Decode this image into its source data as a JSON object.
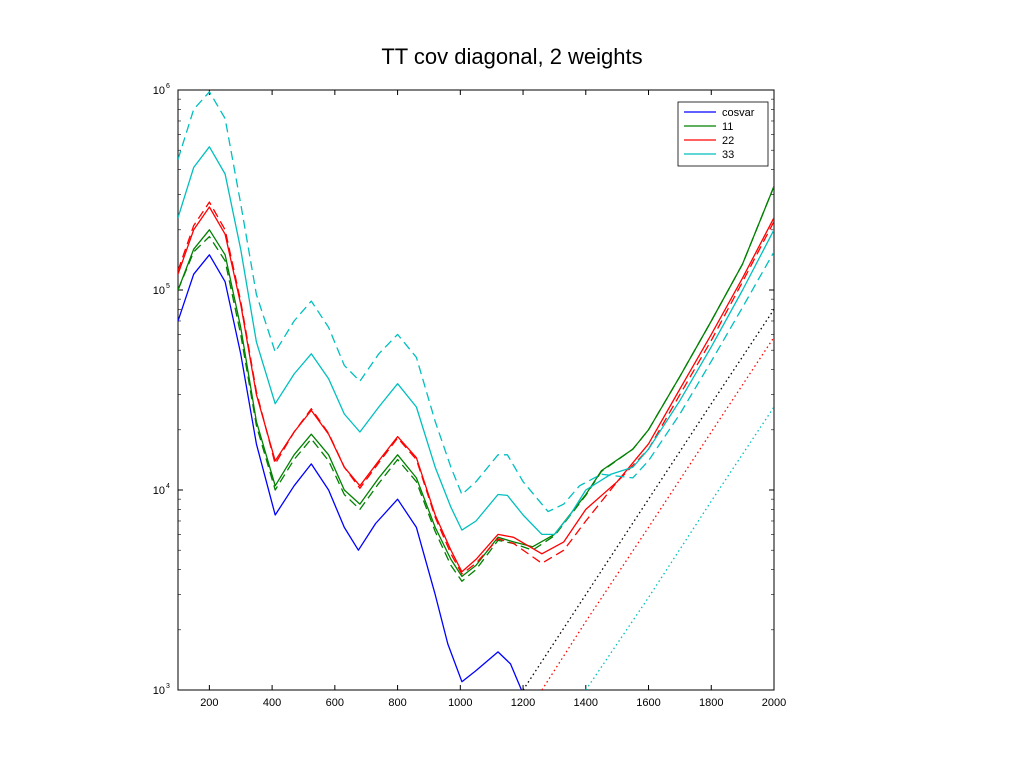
{
  "chart_data": {
    "type": "line",
    "title": "TT cov diagonal, 2 weights",
    "xlabel": "",
    "ylabel": "",
    "xlim": [
      100,
      2000
    ],
    "ylim": [
      1000,
      1000000
    ],
    "yscale": "log",
    "grid": false,
    "legend_position": "top-right",
    "xticks": [
      200,
      400,
      600,
      800,
      1000,
      1200,
      1400,
      1600,
      1800,
      2000
    ],
    "yticks": [
      {
        "value": 1000,
        "base": "10",
        "exp": "3"
      },
      {
        "value": 10000,
        "base": "10",
        "exp": "4"
      },
      {
        "value": 100000,
        "base": "10",
        "exp": "5"
      },
      {
        "value": 1000000,
        "base": "10",
        "exp": "6"
      }
    ],
    "legend": [
      {
        "label": "cosvar",
        "color": "#0000ff"
      },
      {
        "label": "11",
        "color": "#008000"
      },
      {
        "label": "22",
        "color": "#ff0000"
      },
      {
        "label": "33",
        "color": "#00bfbf"
      }
    ],
    "series": [
      {
        "color": "#0000ff",
        "style": "solid",
        "x": [
          100,
          150,
          200,
          250,
          300,
          350,
          410,
          470,
          525,
          580,
          630,
          675,
          730,
          800,
          860,
          920,
          960,
          1005,
          1050,
          1120,
          1160,
          1195
        ],
        "y": [
          70000,
          120000,
          150000,
          110000,
          48000,
          17000,
          7500,
          10500,
          13500,
          10000,
          6500,
          5000,
          6800,
          9000,
          6500,
          3000,
          1700,
          1100,
          1250,
          1550,
          1350,
          1000
        ]
      },
      {
        "color": "#008000",
        "style": "solid",
        "x": [
          100,
          150,
          200,
          250,
          300,
          350,
          410,
          470,
          525,
          580,
          630,
          680,
          740,
          800,
          860,
          920,
          970,
          1005,
          1050,
          1120,
          1170,
          1230,
          1300,
          1400,
          1450,
          1550,
          1600,
          1700,
          1800,
          1900,
          2000
        ],
        "y": [
          100000,
          160000,
          200000,
          150000,
          65000,
          22000,
          10500,
          15000,
          19000,
          15000,
          10000,
          8500,
          11500,
          15000,
          11500,
          6500,
          4500,
          3700,
          4200,
          5800,
          5500,
          5200,
          6000,
          9500,
          12500,
          16000,
          20000,
          37000,
          70000,
          135000,
          330000
        ]
      },
      {
        "color": "#008000",
        "style": "dashed",
        "x": [
          100,
          150,
          200,
          250,
          300,
          350,
          410,
          470,
          525,
          580,
          630,
          680,
          740,
          800,
          860,
          920,
          970,
          1005,
          1050,
          1120,
          1170,
          1230,
          1300,
          1400,
          1450,
          1550,
          1600,
          1700,
          1800,
          1900,
          2000
        ],
        "y": [
          100000,
          155000,
          185000,
          140000,
          60000,
          21000,
          10000,
          14200,
          18000,
          14000,
          9500,
          8000,
          10800,
          14200,
          11000,
          6200,
          4200,
          3500,
          4000,
          5600,
          5400,
          5000,
          5900,
          9400,
          12400,
          16000,
          20000,
          37000,
          70000,
          135000,
          330000
        ]
      },
      {
        "color": "#ff0000",
        "style": "solid",
        "x": [
          100,
          150,
          200,
          250,
          300,
          350,
          410,
          470,
          525,
          580,
          630,
          680,
          740,
          800,
          860,
          920,
          970,
          1005,
          1050,
          1120,
          1170,
          1260,
          1330,
          1400,
          1500,
          1600,
          1700,
          1800,
          1900,
          2000
        ],
        "y": [
          120000,
          200000,
          260000,
          190000,
          85000,
          30000,
          14000,
          19500,
          25000,
          19000,
          13000,
          10500,
          14000,
          18500,
          14500,
          7500,
          5000,
          3900,
          4500,
          6000,
          5800,
          4800,
          5500,
          8000,
          11000,
          17000,
          32000,
          60000,
          115000,
          230000
        ]
      },
      {
        "color": "#ff0000",
        "style": "dashed",
        "x": [
          100,
          150,
          200,
          250,
          300,
          350,
          410,
          470,
          525,
          580,
          630,
          680,
          740,
          800,
          860,
          920,
          970,
          1005,
          1050,
          1120,
          1170,
          1260,
          1330,
          1400,
          1500,
          1600,
          1700,
          1800,
          1900,
          2000
        ],
        "y": [
          125000,
          210000,
          275000,
          200000,
          88000,
          31000,
          13500,
          19500,
          25500,
          19200,
          13000,
          10200,
          13700,
          18200,
          14200,
          7300,
          4800,
          3800,
          4300,
          5700,
          5400,
          4300,
          5000,
          7000,
          11000,
          16000,
          30000,
          56000,
          110000,
          220000
        ]
      },
      {
        "color": "#00bfbf",
        "style": "solid",
        "x": [
          100,
          150,
          200,
          250,
          300,
          350,
          410,
          470,
          525,
          580,
          630,
          680,
          740,
          800,
          860,
          920,
          970,
          1005,
          1050,
          1120,
          1150,
          1200,
          1260,
          1300,
          1350,
          1400,
          1480,
          1550,
          1600,
          1700,
          1800,
          1900,
          2000
        ],
        "y": [
          230000,
          410000,
          520000,
          380000,
          160000,
          55000,
          27000,
          38000,
          48000,
          36000,
          24000,
          19500,
          26000,
          34000,
          26000,
          13000,
          8200,
          6300,
          7000,
          9500,
          9400,
          7500,
          6000,
          6000,
          7500,
          10000,
          12000,
          13000,
          16000,
          28000,
          52000,
          100000,
          200000
        ]
      },
      {
        "color": "#00bfbf",
        "style": "dashed",
        "x": [
          100,
          150,
          200,
          250,
          300,
          350,
          410,
          470,
          525,
          580,
          630,
          680,
          740,
          800,
          860,
          920,
          970,
          1005,
          1050,
          1120,
          1150,
          1200,
          1280,
          1330,
          1380,
          1450,
          1550,
          1600,
          1700,
          1800,
          1900,
          2000
        ],
        "y": [
          450000,
          800000,
          980000,
          720000,
          270000,
          95000,
          49000,
          70000,
          88000,
          65000,
          42000,
          35000,
          48000,
          60000,
          46000,
          22000,
          13000,
          9500,
          11000,
          15000,
          15000,
          11000,
          7800,
          8500,
          10500,
          12000,
          11500,
          14000,
          24000,
          44000,
          82000,
          155000
        ]
      },
      {
        "color": "#000000",
        "style": "dotted",
        "x": [
          1200,
          1400,
          1600,
          1800,
          2000
        ],
        "y": [
          1000,
          3000,
          9000,
          27000,
          80000
        ]
      },
      {
        "color": "#ff0000",
        "style": "dotted",
        "x": [
          1260,
          1400,
          1600,
          1800,
          2000
        ],
        "y": [
          1000,
          2200,
          6500,
          19500,
          58000
        ]
      },
      {
        "color": "#00bfbf",
        "style": "dotted",
        "x": [
          1400,
          1600,
          1800,
          2000
        ],
        "y": [
          1000,
          2900,
          8800,
          26000
        ]
      }
    ]
  }
}
